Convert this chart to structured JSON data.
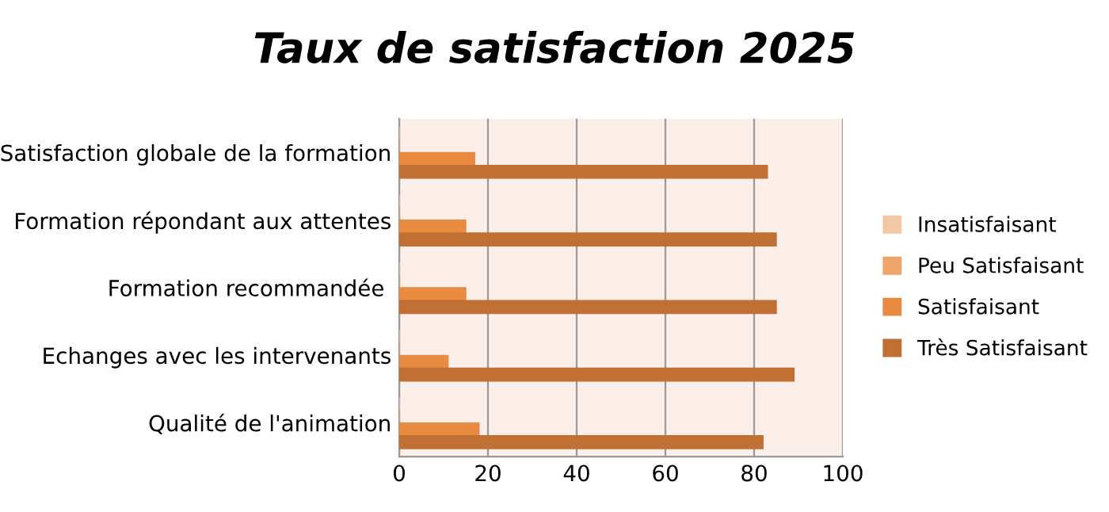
{
  "chart_data": {
    "type": "bar",
    "orientation": "horizontal",
    "title": "Taux de satisfaction 2025",
    "categories": [
      "Satisfaction globale de la formation",
      "Formation répondant aux attentes",
      "Formation recommandée ",
      "Echanges avec les intervenants",
      "Qualité de l'animation"
    ],
    "series": [
      {
        "name": "Insatisfaisant",
        "color": "#f2c8a6",
        "values": [
          0,
          0,
          0,
          0,
          0
        ]
      },
      {
        "name": "Peu Satisfaisant",
        "color": "#eda56c",
        "values": [
          0,
          0,
          0,
          0,
          0
        ]
      },
      {
        "name": "Satisfaisant",
        "color": "#e88a40",
        "values": [
          17,
          15,
          15,
          11,
          18
        ]
      },
      {
        "name": "Très Satisfaisant",
        "color": "#c07032",
        "values": [
          83,
          85,
          85,
          89,
          82
        ]
      }
    ],
    "xlim": [
      0,
      100
    ],
    "xticks": [
      0,
      20,
      40,
      60,
      80,
      100
    ],
    "grid": "x",
    "legend": "right"
  }
}
